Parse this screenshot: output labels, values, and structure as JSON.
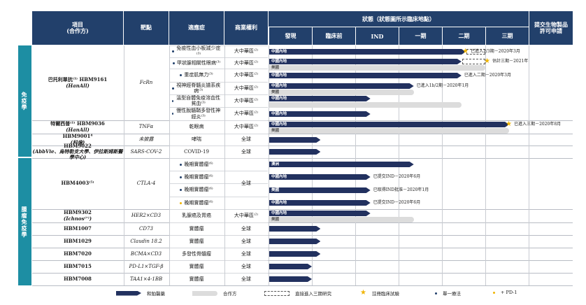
{
  "header": {
    "project": "項目\n(合作方)",
    "target": "靶點",
    "indication": "適應症",
    "rights": "商業權利",
    "status_title": "狀態（狀態圖所示臨床地點）",
    "stages": [
      "發現",
      "臨床前",
      "IND",
      "一期",
      "二期",
      "三期"
    ],
    "bla": "提交生物製品\n許可申請"
  },
  "categories": {
    "immunology": "免疫學",
    "oncology": "腫瘤免疫學"
  },
  "rows": [
    {
      "project": "巴托利單抗⁽¹⁾ HBM9161",
      "partner": "(HanAll)",
      "target": "FcRn",
      "indication": "免疫性血小板減少症⁽³⁾",
      "rights": "大中華區⁽²⁾",
      "dot": "blue",
      "bars": [
        {
          "type": "own",
          "label": "中國內地",
          "stage_end": 4.55
        },
        {
          "type": "dashed",
          "stage_start": 4.55,
          "stage_end": 5.0
        }
      ],
      "star": 4.55,
      "note": "已進入2/3期－2020年3月",
      "note2": ""
    },
    {
      "project": "",
      "partner": "",
      "target": "",
      "indication": "甲狀腺相關性眼病⁽³⁾",
      "rights": "大中華區⁽²⁾",
      "dot": "blue",
      "bars": [
        {
          "type": "own",
          "label": "中國內地",
          "stage_end": 4.45
        },
        {
          "type": "dashed",
          "stage_start": 4.45,
          "stage_end": 5.0
        },
        {
          "type": "partner",
          "label": "美國",
          "stage_end": 5.0
        }
      ],
      "star": 5.05,
      "note": "估計三期－2021年",
      "note2": ""
    },
    {
      "project": "",
      "partner": "",
      "target": "",
      "indication": "重症肌無力⁽³⁾",
      "rights": "大中華區⁽²⁾",
      "dot": "blue",
      "bars": [
        {
          "type": "own",
          "label": "中國內地",
          "stage_end": 4.45
        }
      ],
      "note": "已進入二期－2020年3月"
    },
    {
      "project": "",
      "partner": "",
      "target": "",
      "indication": "視神經脊髓炎譜系疾病⁽³⁾",
      "rights": "大中華區⁽²⁾",
      "dot": "blue",
      "bars": [
        {
          "type": "own",
          "label": "中國內地",
          "stage_end": 3.35
        },
        {
          "type": "partner",
          "label": "美國",
          "stage_end": 3.35
        }
      ],
      "note": "已進入1b/2期－2020年1月"
    },
    {
      "project": "",
      "partner": "",
      "target": "",
      "indication": "溫型自體免疫溶血性貧血⁽³⁾",
      "rights": "大中華區⁽²⁾",
      "dot": "blue",
      "bars": [
        {
          "type": "own",
          "label": "中國內地",
          "stage_end": 2.35
        },
        {
          "type": "partner",
          "label": "",
          "stage_end": 4.45
        }
      ]
    },
    {
      "project": "",
      "partner": "",
      "target": "",
      "indication": "慢性脫髓鞘多發性神經炎⁽³⁾",
      "rights": "大中華區⁽²⁾",
      "dot": "blue",
      "bars": [
        {
          "type": "own",
          "label": "中國內地",
          "stage_end": 2.35
        }
      ]
    },
    {
      "project": "特爾西普⁽¹⁾ HBM9036",
      "partner": "(HanAll)",
      "target": "TNFα",
      "indication": "乾眼病",
      "rights": "大中華區⁽²⁾",
      "dot": "",
      "bars": [
        {
          "type": "own",
          "label": "中國內地",
          "stage_end": 5.55
        },
        {
          "type": "partner",
          "label": "美國",
          "stage_end": 5.55
        }
      ],
      "star": 5.55,
      "note": "已進入三期－2020年8月"
    },
    {
      "project": "HBM9001⁴",
      "partner": "(科倫)",
      "target": "未披露",
      "indication": "哮喘",
      "rights": "全球",
      "dot": "",
      "bars": [
        {
          "type": "own",
          "label": "",
          "stage_end": 1.2
        }
      ]
    },
    {
      "project": "HBM9022",
      "partner": "(AbbVie、烏特勒支大學、伊拉斯姆斯醫學中心)",
      "target": "SARS-COV-2",
      "indication": "COVID-19",
      "rights": "全球",
      "dot": "",
      "bars": [
        {
          "type": "own",
          "label": "",
          "stage_end": 1.2
        }
      ]
    },
    {
      "project": "HBM4003⁽⁵⁾",
      "partner": "",
      "target": "CTLA-4",
      "indication": "晚期實體瘤⁽⁶⁾",
      "rights": "全球",
      "dot": "blue",
      "bars": [
        {
          "type": "own",
          "label": "澳洲",
          "stage_end": 3.35
        }
      ]
    },
    {
      "project": "",
      "partner": "",
      "target": "",
      "indication": "晚期實體瘤⁽⁶⁾",
      "rights": "",
      "dot": "blue",
      "bars": [
        {
          "type": "own",
          "label": "中國內地",
          "stage_end": 2.35
        }
      ],
      "note": "已提交IND－2020年6月"
    },
    {
      "project": "",
      "partner": "",
      "target": "",
      "indication": "晚期實體瘤⁽⁶⁾",
      "rights": "",
      "dot": "blue",
      "bars": [
        {
          "type": "own",
          "label": "美國",
          "stage_end": 2.35
        }
      ],
      "note": "已取得IND批准－2020年1月"
    },
    {
      "project": "",
      "partner": "",
      "target": "",
      "indication": "晚期實體瘤⁽⁶⁾",
      "rights": "",
      "dot": "yellow",
      "bars": [
        {
          "type": "own",
          "label": "中國內地",
          "stage_end": 2.35
        }
      ],
      "note": "已提交IND－2020年6月"
    },
    {
      "project": "HBM9302",
      "partner": "(Ichnos⁽⁷⁾)",
      "target": "HER2×CD3",
      "indication": "乳腺癌及胃癌",
      "rights": "大中華區⁽²⁾",
      "dot": "",
      "bars": [
        {
          "type": "own",
          "label": "中國內地",
          "stage_end": 2.35
        },
        {
          "type": "partner",
          "label": "美國",
          "stage_end": 3.35
        }
      ]
    },
    {
      "project": "HBM1007",
      "partner": "",
      "target": "CD73",
      "indication": "實體瘤",
      "rights": "全球",
      "dot": "",
      "bars": [
        {
          "type": "own",
          "label": "",
          "stage_end": 1.2
        }
      ]
    },
    {
      "project": "HBM1029",
      "partner": "",
      "target": "Claudin 18.2",
      "indication": "實體瘤",
      "rights": "全球",
      "dot": "",
      "bars": [
        {
          "type": "own",
          "label": "",
          "stage_end": 1.2
        }
      ]
    },
    {
      "project": "HBM7020",
      "partner": "",
      "target": "BCMA×CD3",
      "indication": "多發性骨髓瘤",
      "rights": "全球",
      "dot": "",
      "bars": [
        {
          "type": "own",
          "label": "",
          "stage_end": 1.2
        }
      ]
    },
    {
      "project": "HBM7015",
      "partner": "",
      "target": "PD-L1×TGF-β",
      "indication": "實體瘤",
      "rights": "全球",
      "dot": "",
      "bars": [
        {
          "type": "own",
          "label": "",
          "stage_end": 1.0
        }
      ]
    },
    {
      "project": "HBM7008",
      "partner": "",
      "target": "TAA1×4-1BB",
      "indication": "實體瘤",
      "rights": "全球",
      "dot": "",
      "bars": [
        {
          "type": "own",
          "label": "",
          "stage_end": 1.0
        }
      ]
    }
  ],
  "legend": {
    "own": "和鉑醫藥",
    "partner": "合作方",
    "dashed": "直接進入三期研究",
    "star": "註冊臨床試驗",
    "mono": "單一療法",
    "pd1": "+ PD-1"
  }
}
